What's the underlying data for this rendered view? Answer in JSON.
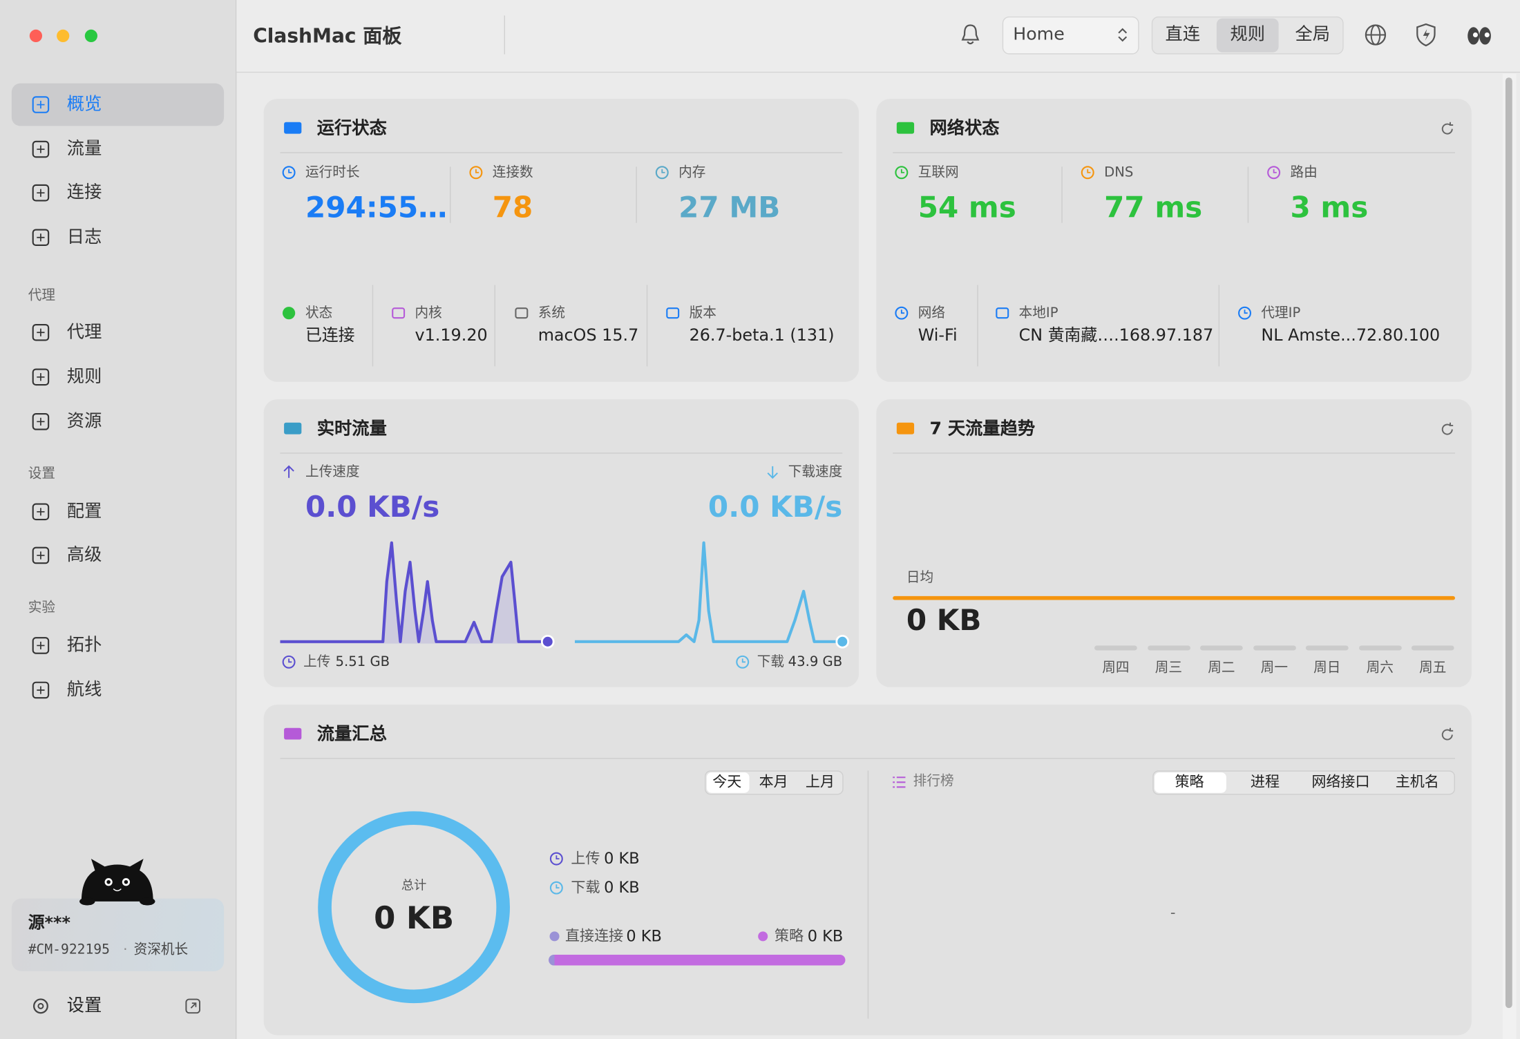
{
  "window": {
    "title": "ClashMac 面板",
    "profile": "Home",
    "modes": [
      "直连",
      "规则",
      "全局"
    ]
  },
  "sidebar": {
    "nav": [
      "概览",
      "流量",
      "连接",
      "日志"
    ],
    "groups": [
      {
        "title": "代理",
        "items": [
          "代理",
          "规则",
          "资源"
        ]
      },
      {
        "title": "设置",
        "items": [
          "配置",
          "高级"
        ]
      },
      {
        "title": "实验",
        "items": [
          "拓扑",
          "航线"
        ]
      }
    ],
    "user": {
      "name": "源***",
      "id": "#CM-922195",
      "separator": "·",
      "rank": "资深机长"
    },
    "settings": "设置"
  },
  "runtime": {
    "title": "运行状态",
    "stats": [
      {
        "label": "运行时长",
        "value": "294:55…"
      },
      {
        "label": "连接数",
        "value": "78"
      },
      {
        "label": "内存",
        "value": "27 MB"
      }
    ],
    "info": [
      {
        "label": "状态",
        "value": "已连接"
      },
      {
        "label": "内核",
        "value": "v1.19.20"
      },
      {
        "label": "系统",
        "value": "macOS 15.7"
      },
      {
        "label": "版本",
        "value": "26.7-beta.1 (131)"
      }
    ]
  },
  "network": {
    "title": "网络状态",
    "stats": [
      {
        "label": "互联网",
        "value": "54 ms"
      },
      {
        "label": "DNS",
        "value": "77 ms"
      },
      {
        "label": "路由",
        "value": "3 ms"
      }
    ],
    "info": [
      {
        "label": "网络",
        "value": "Wi-Fi"
      },
      {
        "label": "本地IP",
        "value": "CN 黄南藏….168.97.187"
      },
      {
        "label": "代理IP",
        "value": "NL Amste...72.80.100"
      }
    ]
  },
  "realtime": {
    "title": "实时流量",
    "upload": {
      "label": "上传速度",
      "speed": "0.0 KB/s",
      "total_label": "上传",
      "total": "5.51 GB"
    },
    "download": {
      "label": "下载速度",
      "speed": "0.0 KB/s",
      "total_label": "下载",
      "total": "43.9 GB"
    }
  },
  "trend": {
    "title": "7 天流量趋势",
    "avg_label": "日均",
    "avg": "0 KB",
    "days": [
      "周四",
      "周三",
      "周二",
      "周一",
      "周日",
      "周六",
      "周五"
    ]
  },
  "summary": {
    "title": "流量汇总",
    "periods": [
      "今天",
      "本月",
      "上月"
    ],
    "total_label": "总计",
    "total": "0 KB",
    "upload_label": "上传",
    "upload": "0 KB",
    "download_label": "下载",
    "download": "0 KB",
    "direct_label": "直接连接",
    "direct": "0 KB",
    "policy_label": "策略",
    "policy": "0 KB",
    "ranking": {
      "title": "排行榜",
      "tabs": [
        "策略",
        "进程",
        "网络接口",
        "主机名"
      ],
      "empty": "-"
    }
  }
}
